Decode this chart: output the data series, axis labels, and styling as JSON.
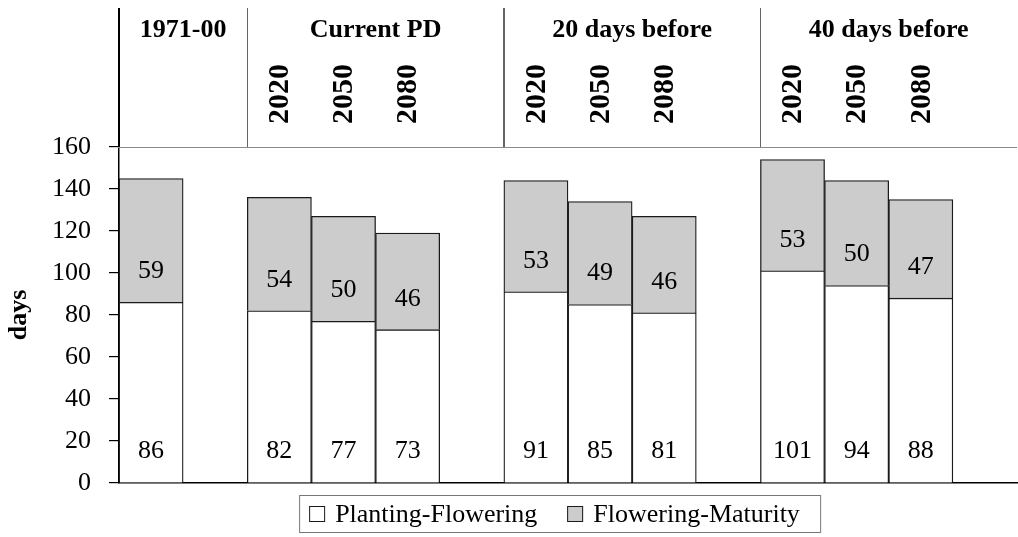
{
  "chart_data": {
    "type": "bar",
    "ylabel": "days",
    "categories": [
      null,
      null,
      "2020",
      "2050",
      "2080",
      null,
      "2020",
      "2050",
      "2080",
      null,
      "2020",
      "2050",
      "2080",
      null
    ],
    "series": [
      {
        "name": "Planting-Flowering",
        "color": "#ffffff",
        "values": [
          86,
          null,
          82,
          77,
          73,
          null,
          91,
          85,
          81,
          null,
          101,
          94,
          88,
          null
        ]
      },
      {
        "name": "Flowering-Maturity",
        "color": "#cccccc",
        "values": [
          59,
          null,
          54,
          50,
          46,
          null,
          53,
          49,
          46,
          null,
          53,
          50,
          47,
          null
        ]
      }
    ],
    "stacked": true,
    "ylim": [
      0,
      160
    ],
    "yticks": [
      0,
      20,
      40,
      60,
      80,
      100,
      120,
      140,
      160
    ],
    "data_labels": true,
    "legend": "bottom",
    "annotations": [
      "1971-00",
      "Current PD",
      "20 days before",
      "40 days before"
    ]
  }
}
